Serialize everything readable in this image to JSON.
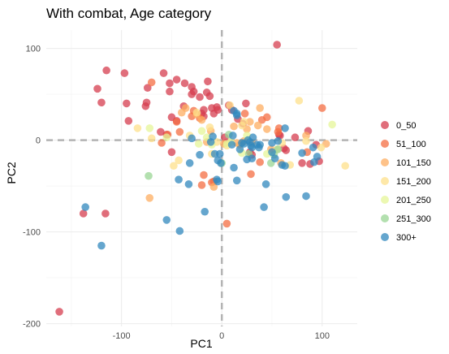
{
  "chart_data": {
    "type": "scatter",
    "title": "With combat, Age category",
    "xlabel": "PC1",
    "ylabel": "PC2",
    "xlim": [
      -175,
      135
    ],
    "ylim": [
      -203,
      120
    ],
    "x_ticks": [
      -100,
      0,
      100
    ],
    "y_ticks": [
      100,
      0,
      -100,
      -200
    ],
    "x_tick_labels": [
      "-100",
      "0",
      "100"
    ],
    "y_tick_labels": [
      "100",
      "0",
      "-100",
      "-200"
    ],
    "grid": true,
    "reference_lines": {
      "x": 0,
      "y": 0,
      "style": "dashed"
    },
    "legend_position": "right",
    "series": [
      {
        "name": "0_50",
        "color": "#d53e4f",
        "points": [
          [
            -162,
            -187
          ],
          [
            -138,
            -80
          ],
          [
            -116,
            -80
          ],
          [
            -124,
            56
          ],
          [
            -115,
            76
          ],
          [
            -120,
            41
          ],
          [
            -97,
            73
          ],
          [
            -95,
            40
          ],
          [
            -93,
            21
          ],
          [
            -74,
            57
          ],
          [
            -76,
            37
          ],
          [
            -75,
            41
          ],
          [
            -58,
            73
          ],
          [
            -52,
            62
          ],
          [
            -52,
            53
          ],
          [
            -45,
            66
          ],
          [
            -37,
            62
          ],
          [
            -30,
            58
          ],
          [
            -28,
            53
          ],
          [
            -30,
            50
          ],
          [
            -22,
            47
          ],
          [
            -18,
            33
          ],
          [
            -18,
            26
          ],
          [
            -15,
            52
          ],
          [
            -14,
            64
          ],
          [
            -12,
            48
          ],
          [
            -10,
            35
          ],
          [
            -8,
            29
          ],
          [
            -45,
            21
          ],
          [
            -50,
            25
          ],
          [
            -61,
            9
          ],
          [
            -55,
            6
          ],
          [
            -50,
            -13
          ],
          [
            -38,
            37
          ],
          [
            -20,
            29
          ],
          [
            -4,
            33
          ],
          [
            -5,
            36
          ],
          [
            7,
            38
          ],
          [
            10,
            33
          ],
          [
            16,
            23
          ],
          [
            21,
            18
          ],
          [
            24,
            40
          ],
          [
            55,
            104
          ],
          [
            58,
            5
          ],
          [
            73,
            3
          ],
          [
            57,
            6
          ],
          [
            64,
            -11
          ],
          [
            62,
            -9
          ],
          [
            80,
            -25
          ],
          [
            86,
            10
          ],
          [
            88,
            -26
          ],
          [
            94,
            -5
          ],
          [
            97,
            -23
          ],
          [
            28,
            -13
          ],
          [
            30,
            -16
          ],
          [
            4,
            -3
          ],
          [
            3,
            3
          ]
        ]
      },
      {
        "name": "51_100",
        "color": "#f46d43",
        "points": [
          [
            -70,
            63
          ],
          [
            -60,
            -3
          ],
          [
            -54,
            6
          ],
          [
            -45,
            20
          ],
          [
            -42,
            9
          ],
          [
            -30,
            26
          ],
          [
            -28,
            32
          ],
          [
            -22,
            24
          ],
          [
            -20,
            -49
          ],
          [
            -18,
            -38
          ],
          [
            -10,
            -46
          ],
          [
            -8,
            -45
          ],
          [
            5,
            -91
          ],
          [
            23,
            29
          ],
          [
            29,
            -37
          ],
          [
            38,
            -24
          ],
          [
            40,
            22
          ],
          [
            45,
            25
          ],
          [
            56,
            9
          ],
          [
            57,
            13
          ],
          [
            85,
            -13
          ],
          [
            100,
            35
          ]
        ]
      },
      {
        "name": "101_150",
        "color": "#fdae61",
        "points": [
          [
            -72,
            -63
          ],
          [
            -40,
            30
          ],
          [
            -36,
            35
          ],
          [
            -25,
            28
          ],
          [
            -20,
            22
          ],
          [
            -15,
            -2
          ],
          [
            -11,
            10
          ],
          [
            -8,
            -51
          ],
          [
            2,
            -4
          ],
          [
            12,
            15
          ],
          [
            15,
            -3
          ],
          [
            18,
            -5
          ],
          [
            22,
            -1
          ],
          [
            25,
            12
          ],
          [
            28,
            20
          ],
          [
            30,
            -3
          ],
          [
            36,
            16
          ],
          [
            38,
            35
          ],
          [
            45,
            12
          ],
          [
            49,
            -10
          ],
          [
            59,
            -25
          ],
          [
            84,
            5
          ],
          [
            104,
            -4
          ]
        ]
      },
      {
        "name": "151_200",
        "color": "#fee08b",
        "points": [
          [
            -84,
            13
          ],
          [
            -70,
            2
          ],
          [
            -48,
            -28
          ],
          [
            -43,
            -22
          ],
          [
            -32,
            5
          ],
          [
            -25,
            30
          ],
          [
            -12,
            14
          ],
          [
            -10,
            -15
          ],
          [
            -5,
            -2
          ],
          [
            5,
            -6
          ],
          [
            8,
            38
          ],
          [
            20,
            16
          ],
          [
            22,
            20
          ],
          [
            55,
            -10
          ],
          [
            60,
            -3
          ],
          [
            68,
            -27
          ],
          [
            77,
            43
          ],
          [
            84,
            -1
          ],
          [
            99,
            -8
          ],
          [
            123,
            -28
          ]
        ]
      },
      {
        "name": "201_250",
        "color": "#e6f598",
        "points": [
          [
            -72,
            13
          ],
          [
            -55,
            3
          ],
          [
            -23,
            -4
          ],
          [
            -20,
            10
          ],
          [
            -15,
            3
          ],
          [
            -10,
            -5
          ],
          [
            5,
            -4
          ],
          [
            9,
            -2
          ],
          [
            20,
            -14
          ],
          [
            25,
            5
          ],
          [
            45,
            -15
          ],
          [
            110,
            17
          ]
        ]
      },
      {
        "name": "251_300",
        "color": "#99d594",
        "points": [
          [
            -73,
            -39
          ],
          [
            0,
            -25
          ],
          [
            7,
            6
          ],
          [
            27,
            -15
          ],
          [
            49,
            -25
          ],
          [
            52,
            -16
          ],
          [
            56,
            -10
          ]
        ]
      },
      {
        "name": "300+",
        "color": "#3288bd",
        "points": [
          [
            -120,
            -115
          ],
          [
            -136,
            -73
          ],
          [
            -55,
            -87
          ],
          [
            -42,
            -99
          ],
          [
            -17,
            -78
          ],
          [
            -43,
            -43
          ],
          [
            -33,
            -48
          ],
          [
            -32,
            -25
          ],
          [
            -30,
            2
          ],
          [
            -22,
            -16
          ],
          [
            -11,
            -2
          ],
          [
            -9,
            4
          ],
          [
            -7,
            -15
          ],
          [
            -4,
            -22
          ],
          [
            -5,
            -43
          ],
          [
            -2,
            -15
          ],
          [
            -1,
            -25
          ],
          [
            -4,
            -45
          ],
          [
            10,
            -5
          ],
          [
            11,
            5
          ],
          [
            12,
            -30
          ],
          [
            15,
            -44
          ],
          [
            12,
            32
          ],
          [
            15,
            27
          ],
          [
            15,
            29
          ],
          [
            18,
            -10
          ],
          [
            20,
            -3
          ],
          [
            22,
            -4
          ],
          [
            25,
            -21
          ],
          [
            26,
            0
          ],
          [
            28,
            -2
          ],
          [
            29,
            -6
          ],
          [
            30,
            -20
          ],
          [
            30,
            -8
          ],
          [
            31,
            3
          ],
          [
            35,
            -5
          ],
          [
            37,
            -8
          ],
          [
            38,
            -5
          ],
          [
            42,
            -73
          ],
          [
            44,
            -48
          ],
          [
            50,
            -3
          ],
          [
            50,
            -13
          ],
          [
            53,
            -20
          ],
          [
            56,
            -1
          ],
          [
            60,
            -27
          ],
          [
            63,
            -28
          ],
          [
            64,
            -62
          ],
          [
            63,
            13
          ],
          [
            80,
            -14
          ],
          [
            84,
            -61
          ],
          [
            91,
            -8
          ],
          [
            95,
            -18
          ],
          [
            92,
            -24
          ]
        ]
      }
    ]
  }
}
